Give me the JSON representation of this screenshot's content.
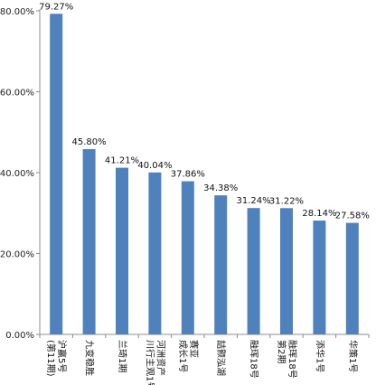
{
  "chart_data": {
    "type": "bar",
    "title": "",
    "xlabel": "",
    "ylabel": "",
    "categories": [
      [
        "沪赢5号",
        "(第11期)"
      ],
      [
        "九变稳胜"
      ],
      [
        "兰琦1期"
      ],
      [
        "河洲资产",
        "川行主观1号"
      ],
      [
        "赛亚",
        "成长1号"
      ],
      [
        "喆颢泓湖"
      ],
      [
        "融珲18号"
      ],
      [
        "融珲18号",
        "第2期"
      ],
      [
        "添华1号"
      ],
      [
        "华策1号"
      ]
    ],
    "values": [
      79.27,
      45.8,
      41.21,
      40.04,
      37.86,
      34.38,
      31.24,
      31.22,
      28.14,
      27.58
    ],
    "value_labels": [
      "79.27%",
      "45.80%",
      "41.21%",
      "40.04%",
      "37.86%",
      "34.38%",
      "31.24%",
      "31.22%",
      "28.14%",
      "27.58%"
    ],
    "y_ticks": [
      0,
      20,
      40,
      60,
      80
    ],
    "y_tick_labels": [
      "0.00%",
      "20.00%",
      "40.00%",
      "60.00%",
      "80.00%"
    ],
    "ylim": [
      0,
      80
    ],
    "bar_color": "#4f81bd",
    "grid": false,
    "legend": "none"
  }
}
